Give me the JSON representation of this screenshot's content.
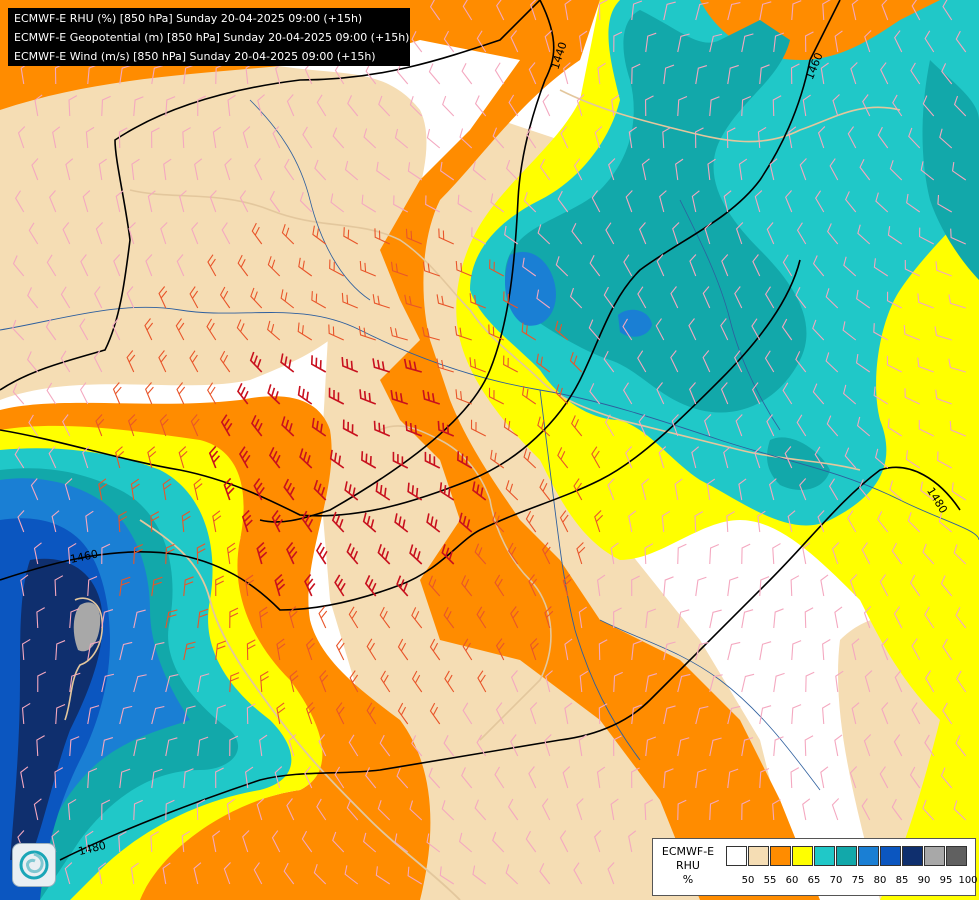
{
  "header": {
    "lines": [
      "ECMWF-E RHU (%) [850 hPa] Sunday 20-04-2025 09:00 (+15h)",
      "ECMWF-E Geopotential (m) [850 hPa] Sunday 20-04-2025 09:00 (+15h)",
      "ECMWF-E Wind (m/s) [850 hPa] Sunday 20-04-2025 09:00 (+15h)"
    ]
  },
  "map": {
    "contour_labels": [
      {
        "text": "1440"
      },
      {
        "text": "1460"
      },
      {
        "text": "1460"
      },
      {
        "text": "1480"
      },
      {
        "text": "1480"
      }
    ],
    "colors": {
      "lt50": "#ffffff",
      "c50": "#f5ddb4",
      "c55": "#ff8c00",
      "c60": "#ffff00",
      "c65": "#20c8c8",
      "c70": "#12a8aa",
      "c75": "#1a7fd4",
      "c80": "#0b56c0",
      "c85": "#0f2f6e",
      "c90": "#a8a8a8",
      "c95": "#606060",
      "contour": "#000000",
      "border": "#e3c79d",
      "river": "#2e5f9e"
    }
  },
  "legend": {
    "title": [
      "ECMWF-E",
      "RHU",
      "%"
    ],
    "ticks": [
      "50",
      "55",
      "60",
      "65",
      "70",
      "75",
      "80",
      "85",
      "90",
      "95",
      "100"
    ],
    "swatch_colors": [
      "#ffffff",
      "#f5ddb4",
      "#ff8c00",
      "#ffff00",
      "#20c8c8",
      "#12a8aa",
      "#1a7fd4",
      "#0b56c0",
      "#0f2f6e",
      "#a8a8a8",
      "#606060"
    ]
  }
}
